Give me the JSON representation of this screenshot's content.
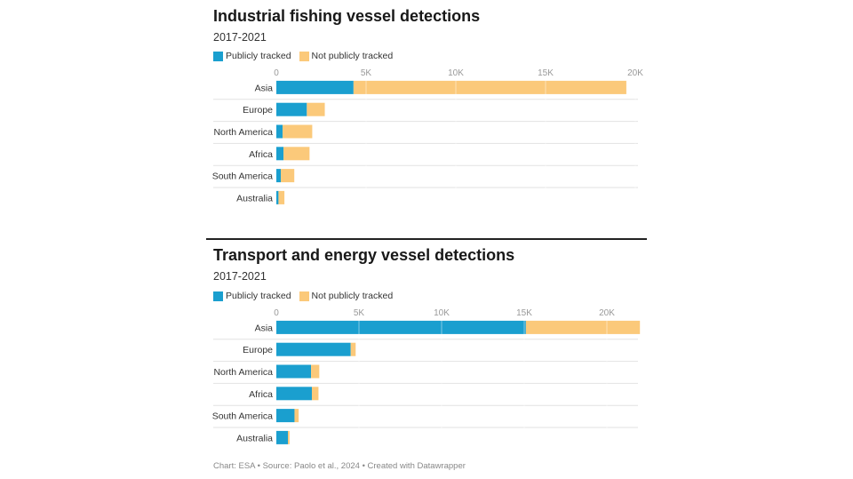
{
  "colors": {
    "publicly_tracked": "#1a9fcf",
    "not_publicly_tracked": "#fbc97a"
  },
  "legend": {
    "publicly_tracked": "Publicly tracked",
    "not_publicly_tracked": "Not publicly tracked"
  },
  "footer": "Chart: ESA • Source: Paolo et al., 2024 • Created with Datawrapper",
  "chart_data": [
    {
      "type": "bar",
      "orientation": "horizontal",
      "stacked": true,
      "title": "Industrial fishing vessel detections",
      "subtitle": "2017-2021",
      "categories": [
        "Asia",
        "Europe",
        "North America",
        "Africa",
        "South America",
        "Australia"
      ],
      "series": [
        {
          "name": "Publicly tracked",
          "values": [
            4300,
            1700,
            350,
            400,
            250,
            120
          ]
        },
        {
          "name": "Not publicly tracked",
          "values": [
            15200,
            1000,
            1650,
            1450,
            750,
            330
          ]
        }
      ],
      "xlim": [
        0,
        20000
      ],
      "x_ticks": [
        0,
        5000,
        10000,
        15000,
        20000
      ],
      "x_tick_labels": [
        "0",
        "5K",
        "10K",
        "15K",
        "20K"
      ],
      "legend_position": "top-left",
      "grid": true
    },
    {
      "type": "bar",
      "orientation": "horizontal",
      "stacked": true,
      "title": "Transport and energy vessel detections",
      "subtitle": "2017-2021",
      "categories": [
        "Asia",
        "Europe",
        "North America",
        "Africa",
        "South America",
        "Australia"
      ],
      "series": [
        {
          "name": "Publicly tracked",
          "values": [
            15100,
            4500,
            2100,
            2150,
            1100,
            700
          ]
        },
        {
          "name": "Not publicly tracked",
          "values": [
            6900,
            300,
            500,
            400,
            250,
            100
          ]
        }
      ],
      "xlim": [
        0,
        20000
      ],
      "x_ticks": [
        0,
        5000,
        10000,
        15000,
        20000
      ],
      "x_tick_labels": [
        "0",
        "5K",
        "10K",
        "15K",
        "20K"
      ],
      "legend_position": "top-left",
      "grid": true
    }
  ]
}
